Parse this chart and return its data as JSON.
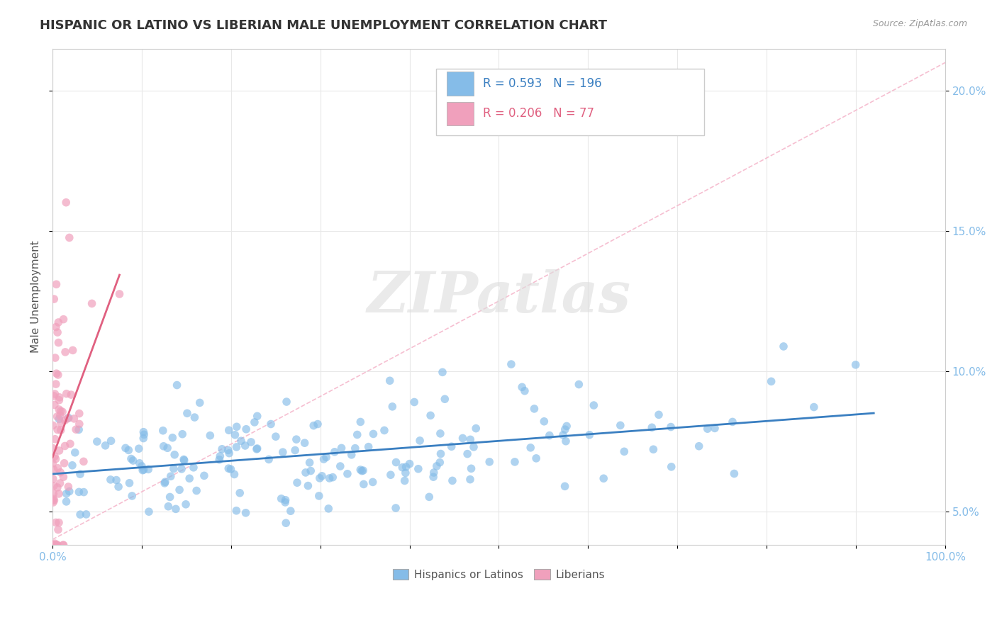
{
  "title": "HISPANIC OR LATINO VS LIBERIAN MALE UNEMPLOYMENT CORRELATION CHART",
  "source": "Source: ZipAtlas.com",
  "ylabel": "Male Unemployment",
  "xlim": [
    0.0,
    1.0
  ],
  "ylim": [
    0.038,
    0.215
  ],
  "yticks": [
    0.05,
    0.1,
    0.15,
    0.2
  ],
  "ytick_labels": [
    "5.0%",
    "10.0%",
    "15.0%",
    "20.0%"
  ],
  "blue_color": "#85bce8",
  "pink_color": "#f0a0bc",
  "blue_line_color": "#3a7fc1",
  "pink_line_color": "#e06080",
  "dashed_line_color": "#f5b8cc",
  "legend_blue_R": "0.593",
  "legend_blue_N": "196",
  "legend_pink_R": "0.206",
  "legend_pink_N": "77",
  "watermark_text": "ZIPatlas",
  "background_color": "#ffffff",
  "grid_color": "#e8e8e8",
  "title_color": "#333333",
  "title_fontsize": 13,
  "axis_label_color": "#555555",
  "tick_label_color_blue": "#85bce8",
  "source_color": "#999999"
}
